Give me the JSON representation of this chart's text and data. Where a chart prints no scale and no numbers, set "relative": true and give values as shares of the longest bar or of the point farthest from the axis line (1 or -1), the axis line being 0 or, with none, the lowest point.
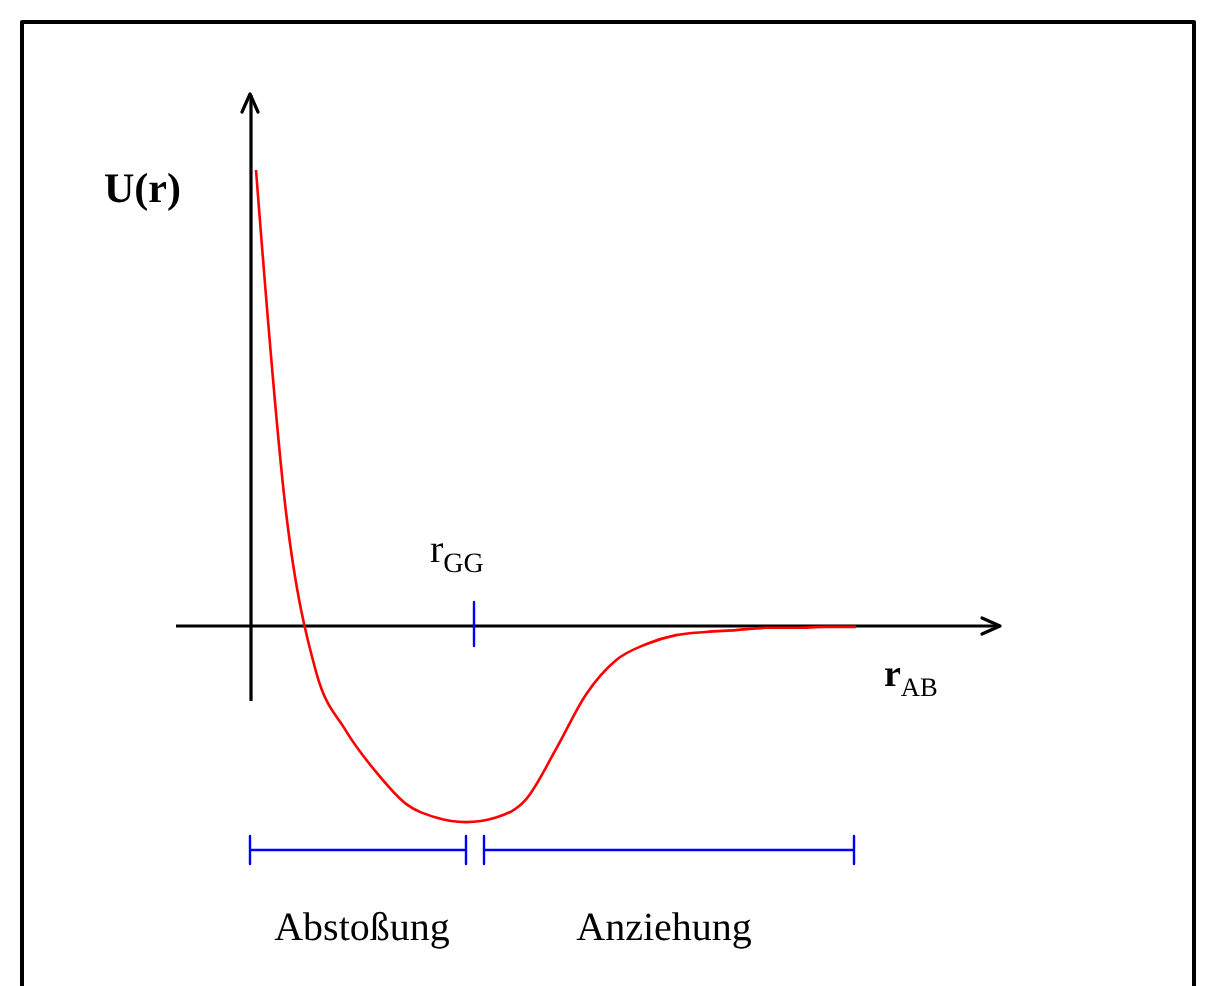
{
  "chart_data": {
    "type": "line",
    "relative": true,
    "categories": [
      null,
      null,
      null,
      null,
      null,
      null,
      null,
      null,
      null,
      null,
      null,
      null,
      null,
      null,
      null,
      null,
      null,
      null,
      null,
      null,
      null
    ],
    "series": [
      {
        "color": "#ff0000",
        "values": [
          1,
          0.25,
          -0.1,
          -0.23,
          -0.32,
          -0.39,
          -0.42,
          -0.43,
          -0.42,
          -0.38,
          -0.27,
          -0.15,
          -0.075,
          -0.04,
          -0.02,
          -0.013,
          -0.009,
          -0.004,
          -0.004,
          -0.002,
          -0.002
        ]
      }
    ],
    "ref_lines": [
      {
        "axis": "y",
        "value": 0,
        "color": "#000000"
      }
    ],
    "xlabel": "r$_{AB}$",
    "ylabel": "U(r)",
    "annotations": [
      "r$_{GG}$",
      "Abstoßung",
      "Anziehung"
    ]
  }
}
